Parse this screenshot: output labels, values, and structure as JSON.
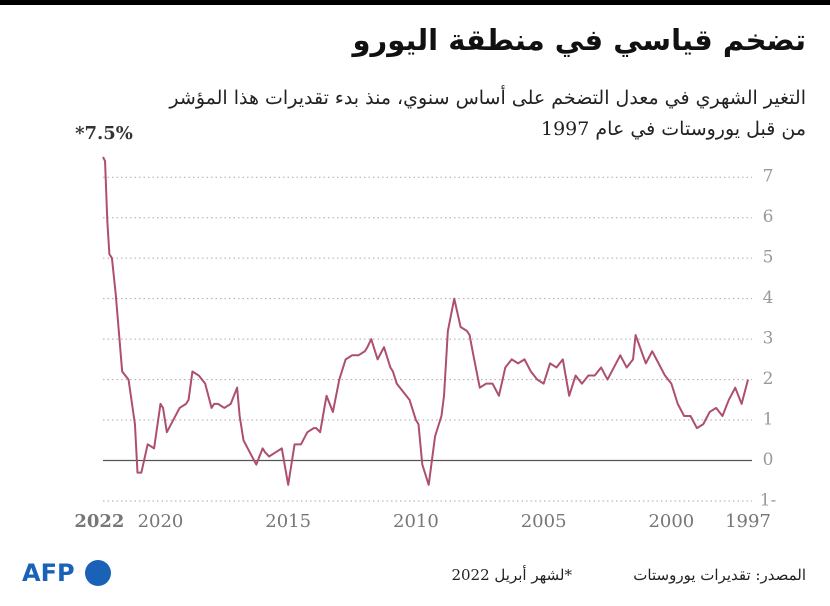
{
  "chart_data": {
    "type": "line",
    "title": "تضخم قياسي في منطقة اليورو",
    "subtitle": [
      "التغير الشهري في معدل التضخم على أساس سنوي، منذ بدء تقديرات هذا المؤشر",
      "من قبل يوروستات في عام 1997"
    ],
    "annotation": "*7.5%",
    "source": "المصدر: تقديرات يوروستات",
    "note": "*لشهر أبريل 2022",
    "logo": "AFP",
    "color": "#ad4f6f",
    "x_reversed": true,
    "grid": true,
    "xlim": [
      1997,
      2022.25
    ],
    "xticks": [
      1997,
      2000,
      2005,
      2010,
      2015,
      2020,
      2022
    ],
    "ylim": [
      -1,
      7.5
    ],
    "yticks": [
      {
        "value": -1,
        "label": "1-"
      },
      0,
      1,
      2,
      3,
      4,
      5,
      6,
      7
    ],
    "x": [
      1997,
      1997.25,
      1997.5,
      1997.75,
      1998,
      1998.25,
      1998.5,
      1998.75,
      1999,
      1999.25,
      1999.5,
      1999.75,
      2000,
      2000.25,
      2000.5,
      2000.75,
      2001,
      2001.4,
      2001.5,
      2001.75,
      2002,
      2002.25,
      2002.5,
      2002.75,
      2003,
      2003.25,
      2003.5,
      2003.75,
      2004,
      2004.25,
      2004.5,
      2004.75,
      2005,
      2005.25,
      2005.5,
      2005.75,
      2006,
      2006.25,
      2006.5,
      2006.75,
      2007,
      2007.25,
      2007.5,
      2007.75,
      2007.9,
      2008,
      2008.25,
      2008.5,
      2008.75,
      2008.9,
      2009,
      2009.25,
      2009.5,
      2009.75,
      2009.9,
      2010,
      2010.25,
      2010.5,
      2010.75,
      2010.9,
      2011,
      2011.25,
      2011.5,
      2011.75,
      2011.9,
      2012,
      2012.25,
      2012.5,
      2012.75,
      2012.9,
      2013,
      2013.25,
      2013.5,
      2013.75,
      2013.9,
      2014,
      2014.25,
      2014.5,
      2014.75,
      2014.9,
      2015,
      2015.25,
      2015.5,
      2015.75,
      2015.9,
      2016,
      2016.25,
      2016.5,
      2016.75,
      2016.9,
      2017,
      2017.25,
      2017.5,
      2017.75,
      2017.9,
      2018,
      2018.25,
      2018.5,
      2018.75,
      2018.9,
      2019,
      2019.25,
      2019.5,
      2019.75,
      2019.9,
      2020,
      2020.25,
      2020.5,
      2020.75,
      2020.9,
      2021,
      2021.25,
      2021.5,
      2021.75,
      2021.9,
      2022,
      2022.08,
      2022.17,
      2022.25
    ],
    "values": [
      2.0,
      1.4,
      1.8,
      1.5,
      1.1,
      1.3,
      1.2,
      0.9,
      0.8,
      1.1,
      1.1,
      1.4,
      1.9,
      2.1,
      2.4,
      2.7,
      2.4,
      3.1,
      2.5,
      2.3,
      2.6,
      2.3,
      2.0,
      2.3,
      2.1,
      2.1,
      1.9,
      2.1,
      1.6,
      2.5,
      2.3,
      2.4,
      1.9,
      2.0,
      2.2,
      2.5,
      2.4,
      2.5,
      2.3,
      1.6,
      1.9,
      1.9,
      1.8,
      2.6,
      3.1,
      3.2,
      3.3,
      4.0,
      3.2,
      1.6,
      1.1,
      0.6,
      -0.6,
      -0.1,
      0.9,
      1.0,
      1.5,
      1.7,
      1.9,
      2.2,
      2.3,
      2.8,
      2.5,
      3.0,
      2.8,
      2.7,
      2.6,
      2.6,
      2.5,
      2.2,
      2.0,
      1.2,
      1.6,
      0.7,
      0.8,
      0.8,
      0.7,
      0.4,
      0.4,
      -0.2,
      -0.6,
      0.3,
      0.2,
      0.1,
      0.2,
      0.3,
      -0.1,
      0.2,
      0.5,
      1.1,
      1.8,
      1.4,
      1.3,
      1.4,
      1.4,
      1.3,
      1.9,
      2.1,
      2.2,
      1.5,
      1.4,
      1.3,
      1.0,
      0.7,
      1.3,
      1.4,
      0.3,
      0.4,
      -0.3,
      -0.3,
      0.9,
      2.0,
      2.2,
      4.1,
      5.0,
      5.1,
      5.9,
      7.4,
      7.5
    ]
  }
}
